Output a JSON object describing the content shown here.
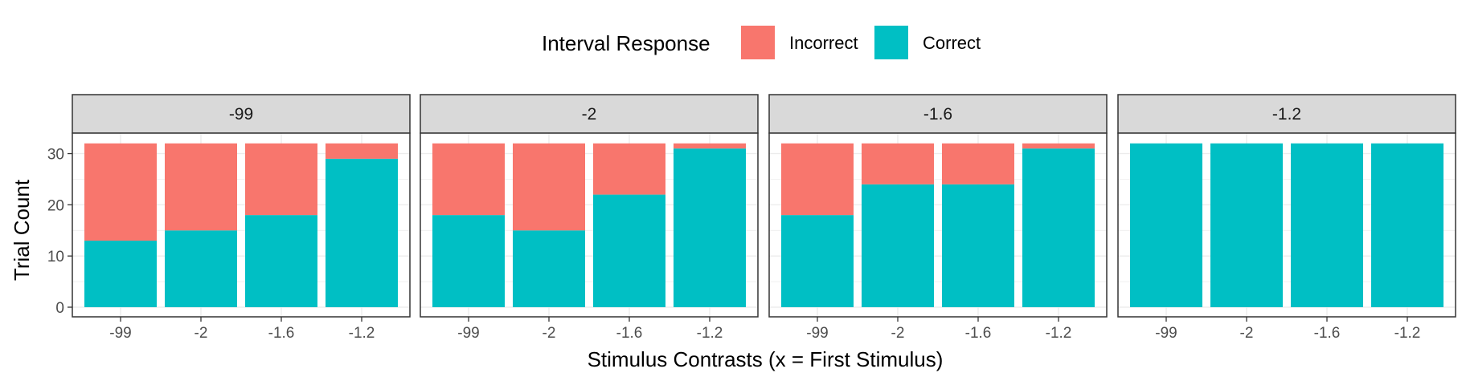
{
  "chart_data": {
    "type": "bar",
    "stacked": true,
    "xlabel": "Stimulus Contrasts (x = First Stimulus)",
    "ylabel": "Trial Count",
    "ylim": [
      0,
      34
    ],
    "yticks": [
      0,
      10,
      20,
      30
    ],
    "categories": [
      "-99",
      "-2",
      "-1.6",
      "-1.2"
    ],
    "legend": {
      "title": "Interval Response",
      "position": "top",
      "items": [
        {
          "name": "Incorrect",
          "color": "#F8766D"
        },
        {
          "name": "Correct",
          "color": "#00BFC4"
        }
      ]
    },
    "panels": [
      {
        "label": "-99",
        "series": [
          {
            "name": "Correct",
            "values": [
              13,
              15,
              18,
              29
            ]
          },
          {
            "name": "Incorrect",
            "values": [
              19,
              17,
              14,
              3
            ]
          }
        ]
      },
      {
        "label": "-2",
        "series": [
          {
            "name": "Correct",
            "values": [
              18,
              15,
              22,
              31
            ]
          },
          {
            "name": "Incorrect",
            "values": [
              14,
              17,
              10,
              1
            ]
          }
        ]
      },
      {
        "label": "-1.6",
        "series": [
          {
            "name": "Correct",
            "values": [
              18,
              24,
              24,
              31
            ]
          },
          {
            "name": "Incorrect",
            "values": [
              14,
              8,
              8,
              1
            ]
          }
        ]
      },
      {
        "label": "-1.2",
        "series": [
          {
            "name": "Correct",
            "values": [
              32,
              32,
              32,
              32
            ]
          },
          {
            "name": "Incorrect",
            "values": [
              0,
              0,
              0,
              0
            ]
          }
        ]
      }
    ],
    "grid": true
  }
}
